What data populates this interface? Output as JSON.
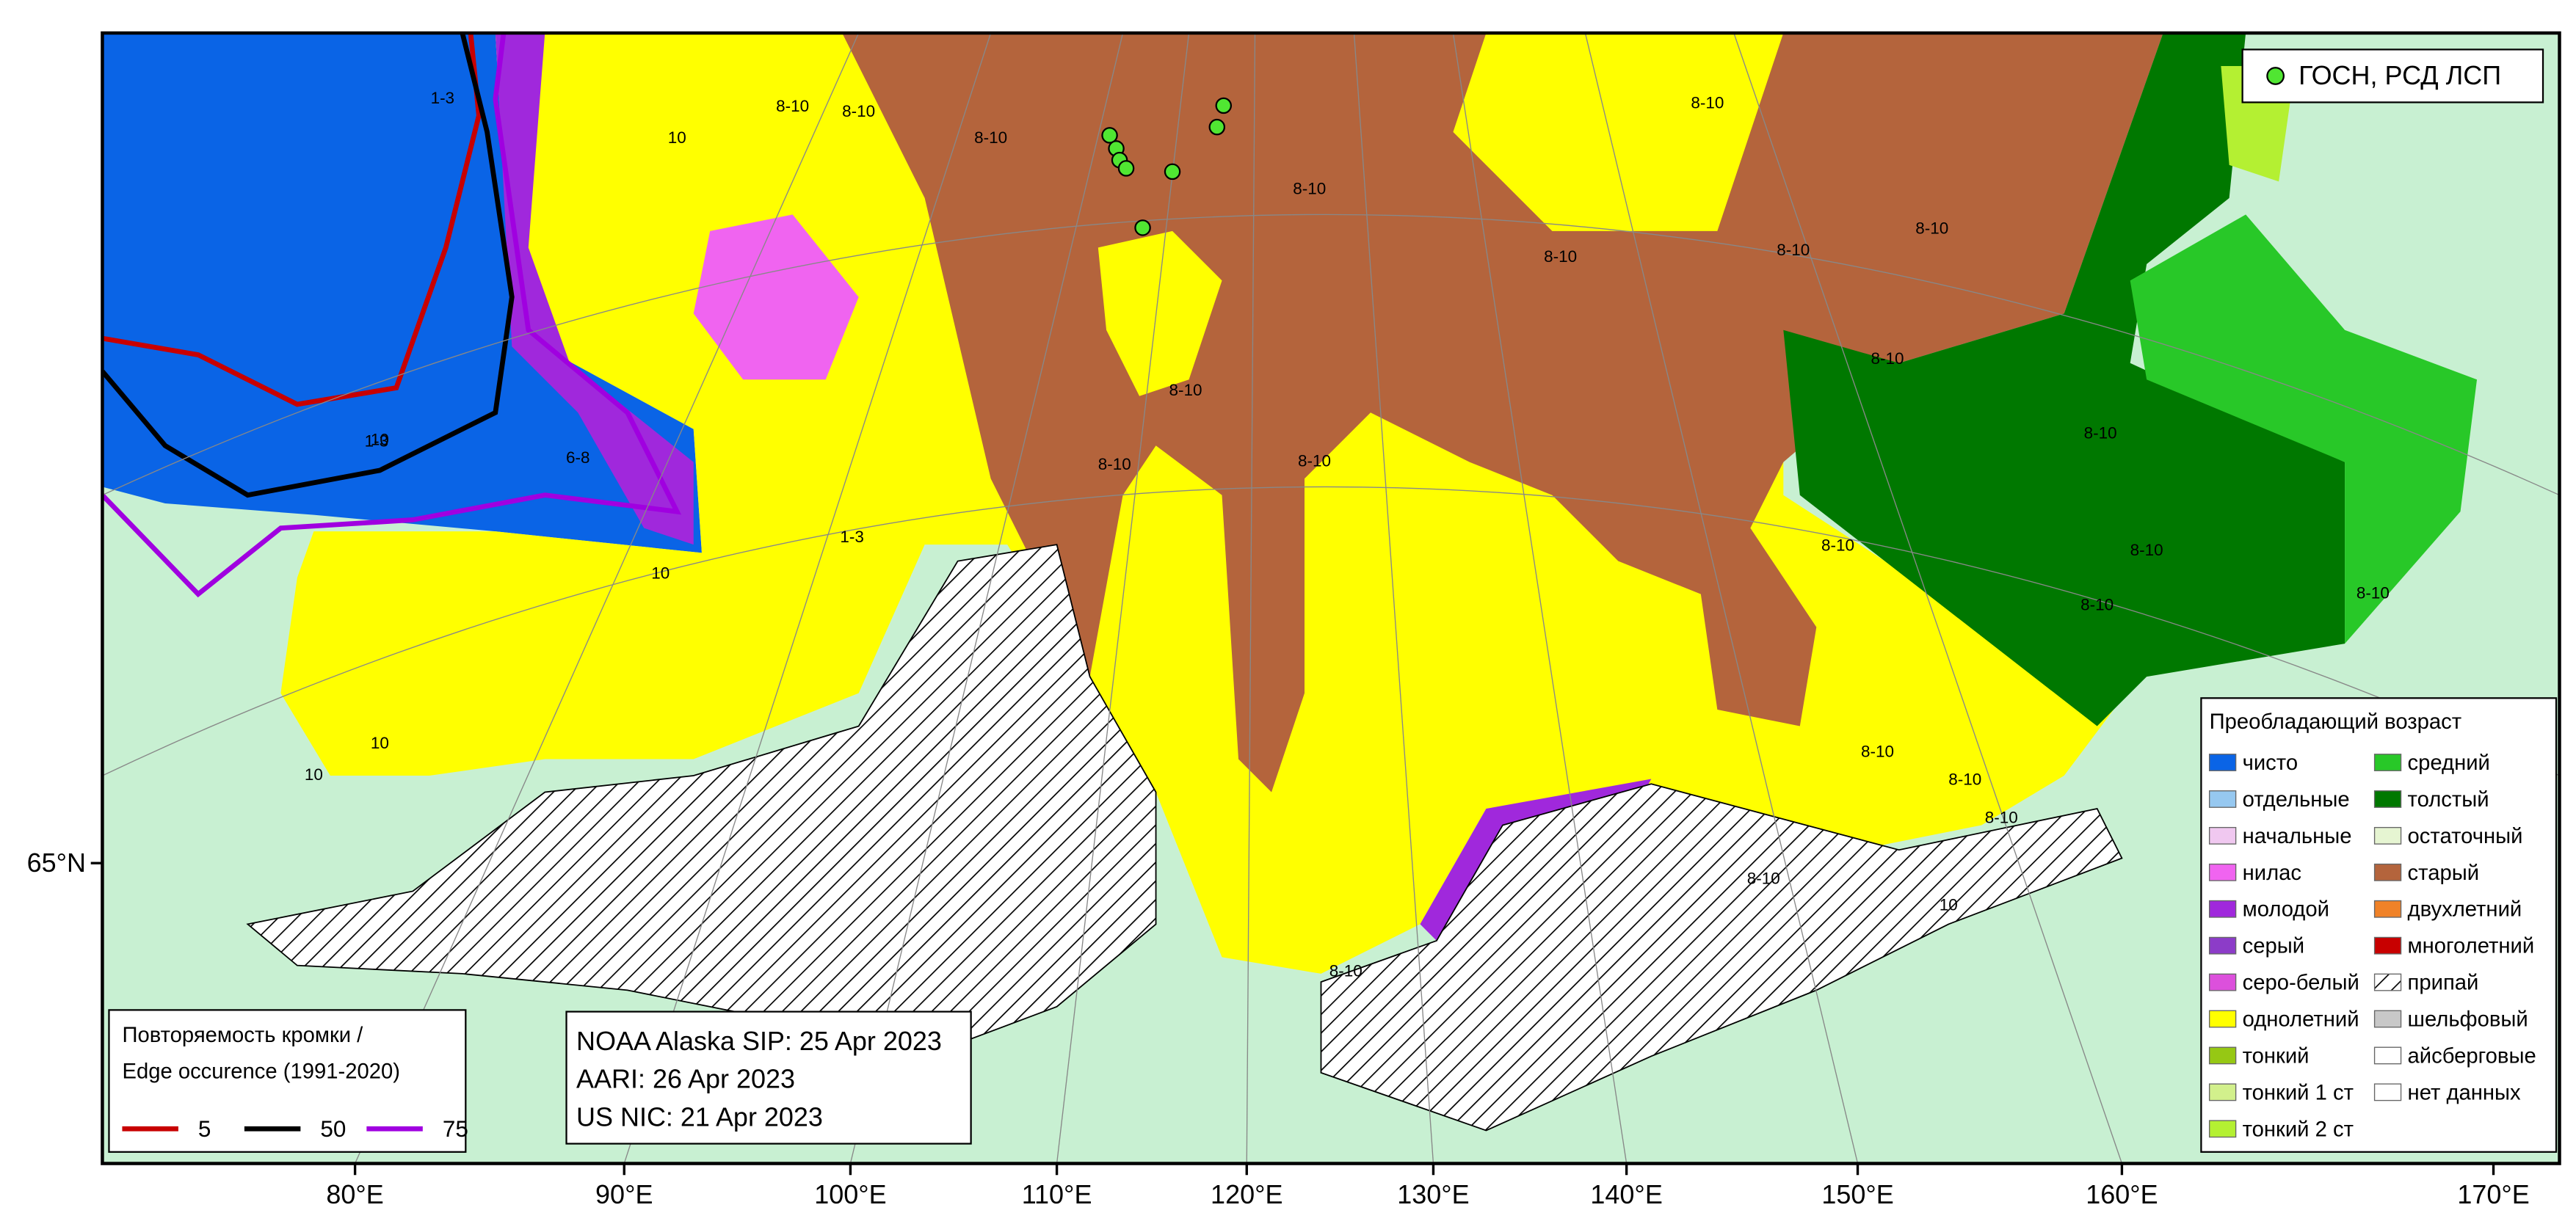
{
  "map": {
    "lon_labels": [
      "80°E",
      "90°E",
      "100°E",
      "110°E",
      "120°E",
      "130°E",
      "140°E",
      "150°E",
      "160°E",
      "170°E"
    ],
    "lat_labels": [
      "65°N"
    ],
    "points_legend": "ГОСН, РСД ЛСП",
    "age_legend": {
      "title": "Преобладающий возраст",
      "items": [
        {
          "name": "чисто",
          "color": "#0a64e6"
        },
        {
          "name": "отдельные",
          "color": "#96c8f0"
        },
        {
          "name": "начальные",
          "color": "#f0c8f0"
        },
        {
          "name": "нилас",
          "color": "#f064f0"
        },
        {
          "name": "молодой",
          "color": "#a028dc"
        },
        {
          "name": "серый",
          "color": "#8c3cc8"
        },
        {
          "name": "серо-белый",
          "color": "#dc50dc"
        },
        {
          "name": "однолетний",
          "color": "#ffff00"
        },
        {
          "name": "тонкий",
          "color": "#96c814"
        },
        {
          "name": "тонкий 1 ст",
          "color": "#d2f08c"
        },
        {
          "name": "тонкий 2 ст",
          "color": "#b4f032"
        },
        {
          "name": "средний",
          "color": "#28c828"
        },
        {
          "name": "толстый",
          "color": "#007800"
        },
        {
          "name": "остаточный",
          "color": "#e6f5d2"
        },
        {
          "name": "старый",
          "color": "#b4643c"
        },
        {
          "name": "двухлетний",
          "color": "#f08228"
        },
        {
          "name": "многолетний",
          "color": "#c80000"
        },
        {
          "name": "припай",
          "color": "hatch"
        },
        {
          "name": "шельфовый",
          "color": "#c8c8c8"
        },
        {
          "name": "айсберговые",
          "color": "#ffffff"
        },
        {
          "name": "нет данных",
          "color": "#ffffff"
        }
      ]
    },
    "edge_legend": {
      "title": [
        "Повторяемость кромки /",
        "Edge occurence (1991-2020)"
      ],
      "items": [
        {
          "name": "5",
          "color": "#c80000"
        },
        {
          "name": "50",
          "color": "#000000"
        },
        {
          "name": "75",
          "color": "#a000e0"
        }
      ]
    },
    "sources": [
      "NOAA Alaska SIP: 25 Apr 2023",
      "AARI: 26 Apr 2023",
      "US NIC: 21 Apr 2023"
    ],
    "region_labels": [
      "8-10",
      "8-10",
      "8-10",
      "8-10",
      "8-10",
      "8-10",
      "8-10",
      "8-10",
      "8-10",
      "8-10",
      "8-10",
      "8-10",
      "8-10",
      "8-10",
      "8-10",
      "8-10",
      "8-10",
      "8-10",
      "8-10",
      "8-10",
      "8-10",
      "8-10",
      "1-3",
      "1-3",
      "1-3",
      "6-8",
      "10",
      "10",
      "10",
      "10",
      "10",
      "10"
    ]
  }
}
